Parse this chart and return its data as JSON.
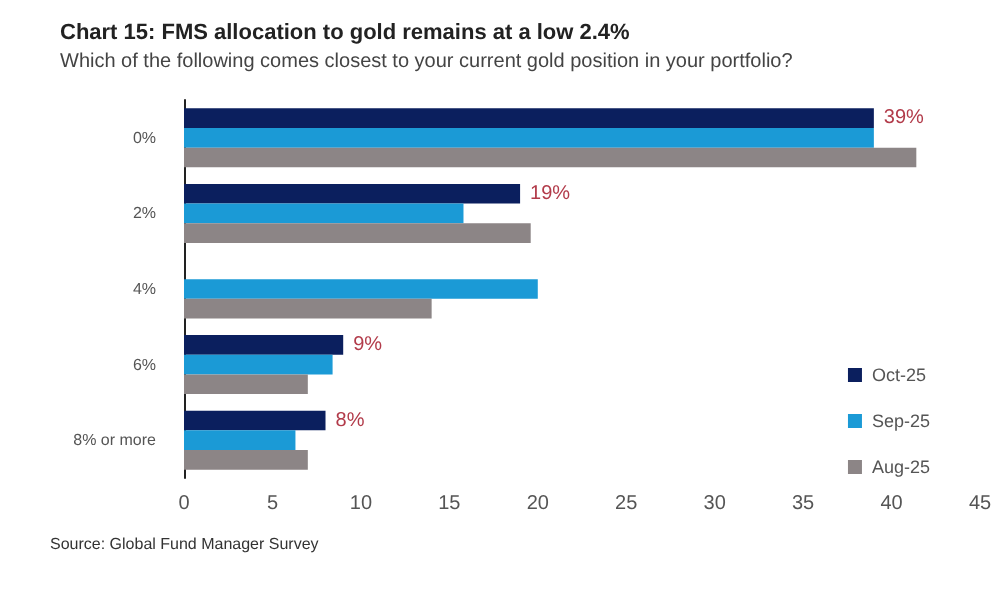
{
  "chart_data": {
    "type": "bar",
    "orientation": "horizontal",
    "title": "Chart 15: FMS allocation to gold remains at a low 2.4%",
    "subtitle": "Which of the following comes closest to your current gold position in your portfolio?",
    "categories": [
      "0%",
      "2%",
      "4%",
      "6%",
      "8% or more"
    ],
    "series": [
      {
        "name": "Oct-25",
        "color": "#0b1f5e",
        "values": [
          39,
          19,
          null,
          9,
          8
        ],
        "value_labels": [
          "39%",
          "19%",
          null,
          "9%",
          "8%"
        ]
      },
      {
        "name": "Sep-25",
        "color": "#1b9ad6",
        "values": [
          39,
          15.8,
          20,
          8.4,
          6.3
        ]
      },
      {
        "name": "Aug-25",
        "color": "#8c8586",
        "values": [
          41.4,
          19.6,
          14,
          7,
          7
        ]
      }
    ],
    "xlim": [
      0,
      45
    ],
    "xticks": [
      0,
      5,
      10,
      15,
      20,
      25,
      30,
      35,
      40,
      45
    ],
    "grid": false,
    "legend": "right",
    "annotations": [
      "Source: Global Fund Manager Survey"
    ]
  }
}
